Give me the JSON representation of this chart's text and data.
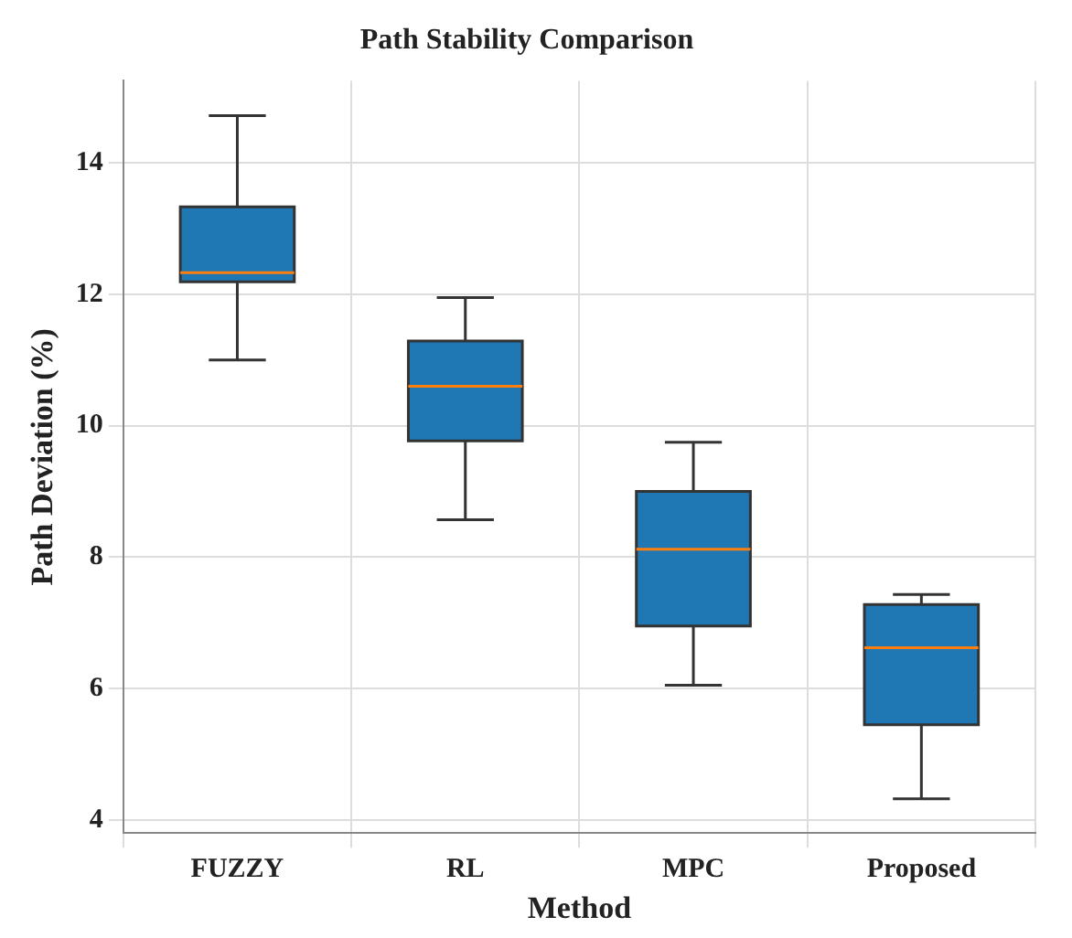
{
  "chart_data": {
    "type": "box",
    "title": "Path Stability Comparison",
    "xlabel": "Method",
    "ylabel": "Path Deviation (%)",
    "categories": [
      "FUZZY",
      "RL",
      "MPC",
      "Proposed"
    ],
    "series": [
      {
        "color": "#1f77b4",
        "boxes": [
          {
            "low": 11.0,
            "q1": 12.19,
            "median": 12.33,
            "q3": 13.33,
            "high": 14.72
          },
          {
            "low": 8.57,
            "q1": 9.77,
            "median": 10.6,
            "q3": 11.29,
            "high": 11.95
          },
          {
            "low": 6.05,
            "q1": 6.95,
            "median": 8.12,
            "q3": 9.0,
            "high": 9.75
          },
          {
            "low": 4.32,
            "q1": 5.45,
            "median": 6.62,
            "q3": 7.28,
            "high": 7.43
          }
        ]
      }
    ],
    "ylim": [
      3.8,
      15.25
    ],
    "yticks": [
      4,
      6,
      8,
      10,
      12,
      14
    ],
    "grid": true,
    "legend": false
  }
}
